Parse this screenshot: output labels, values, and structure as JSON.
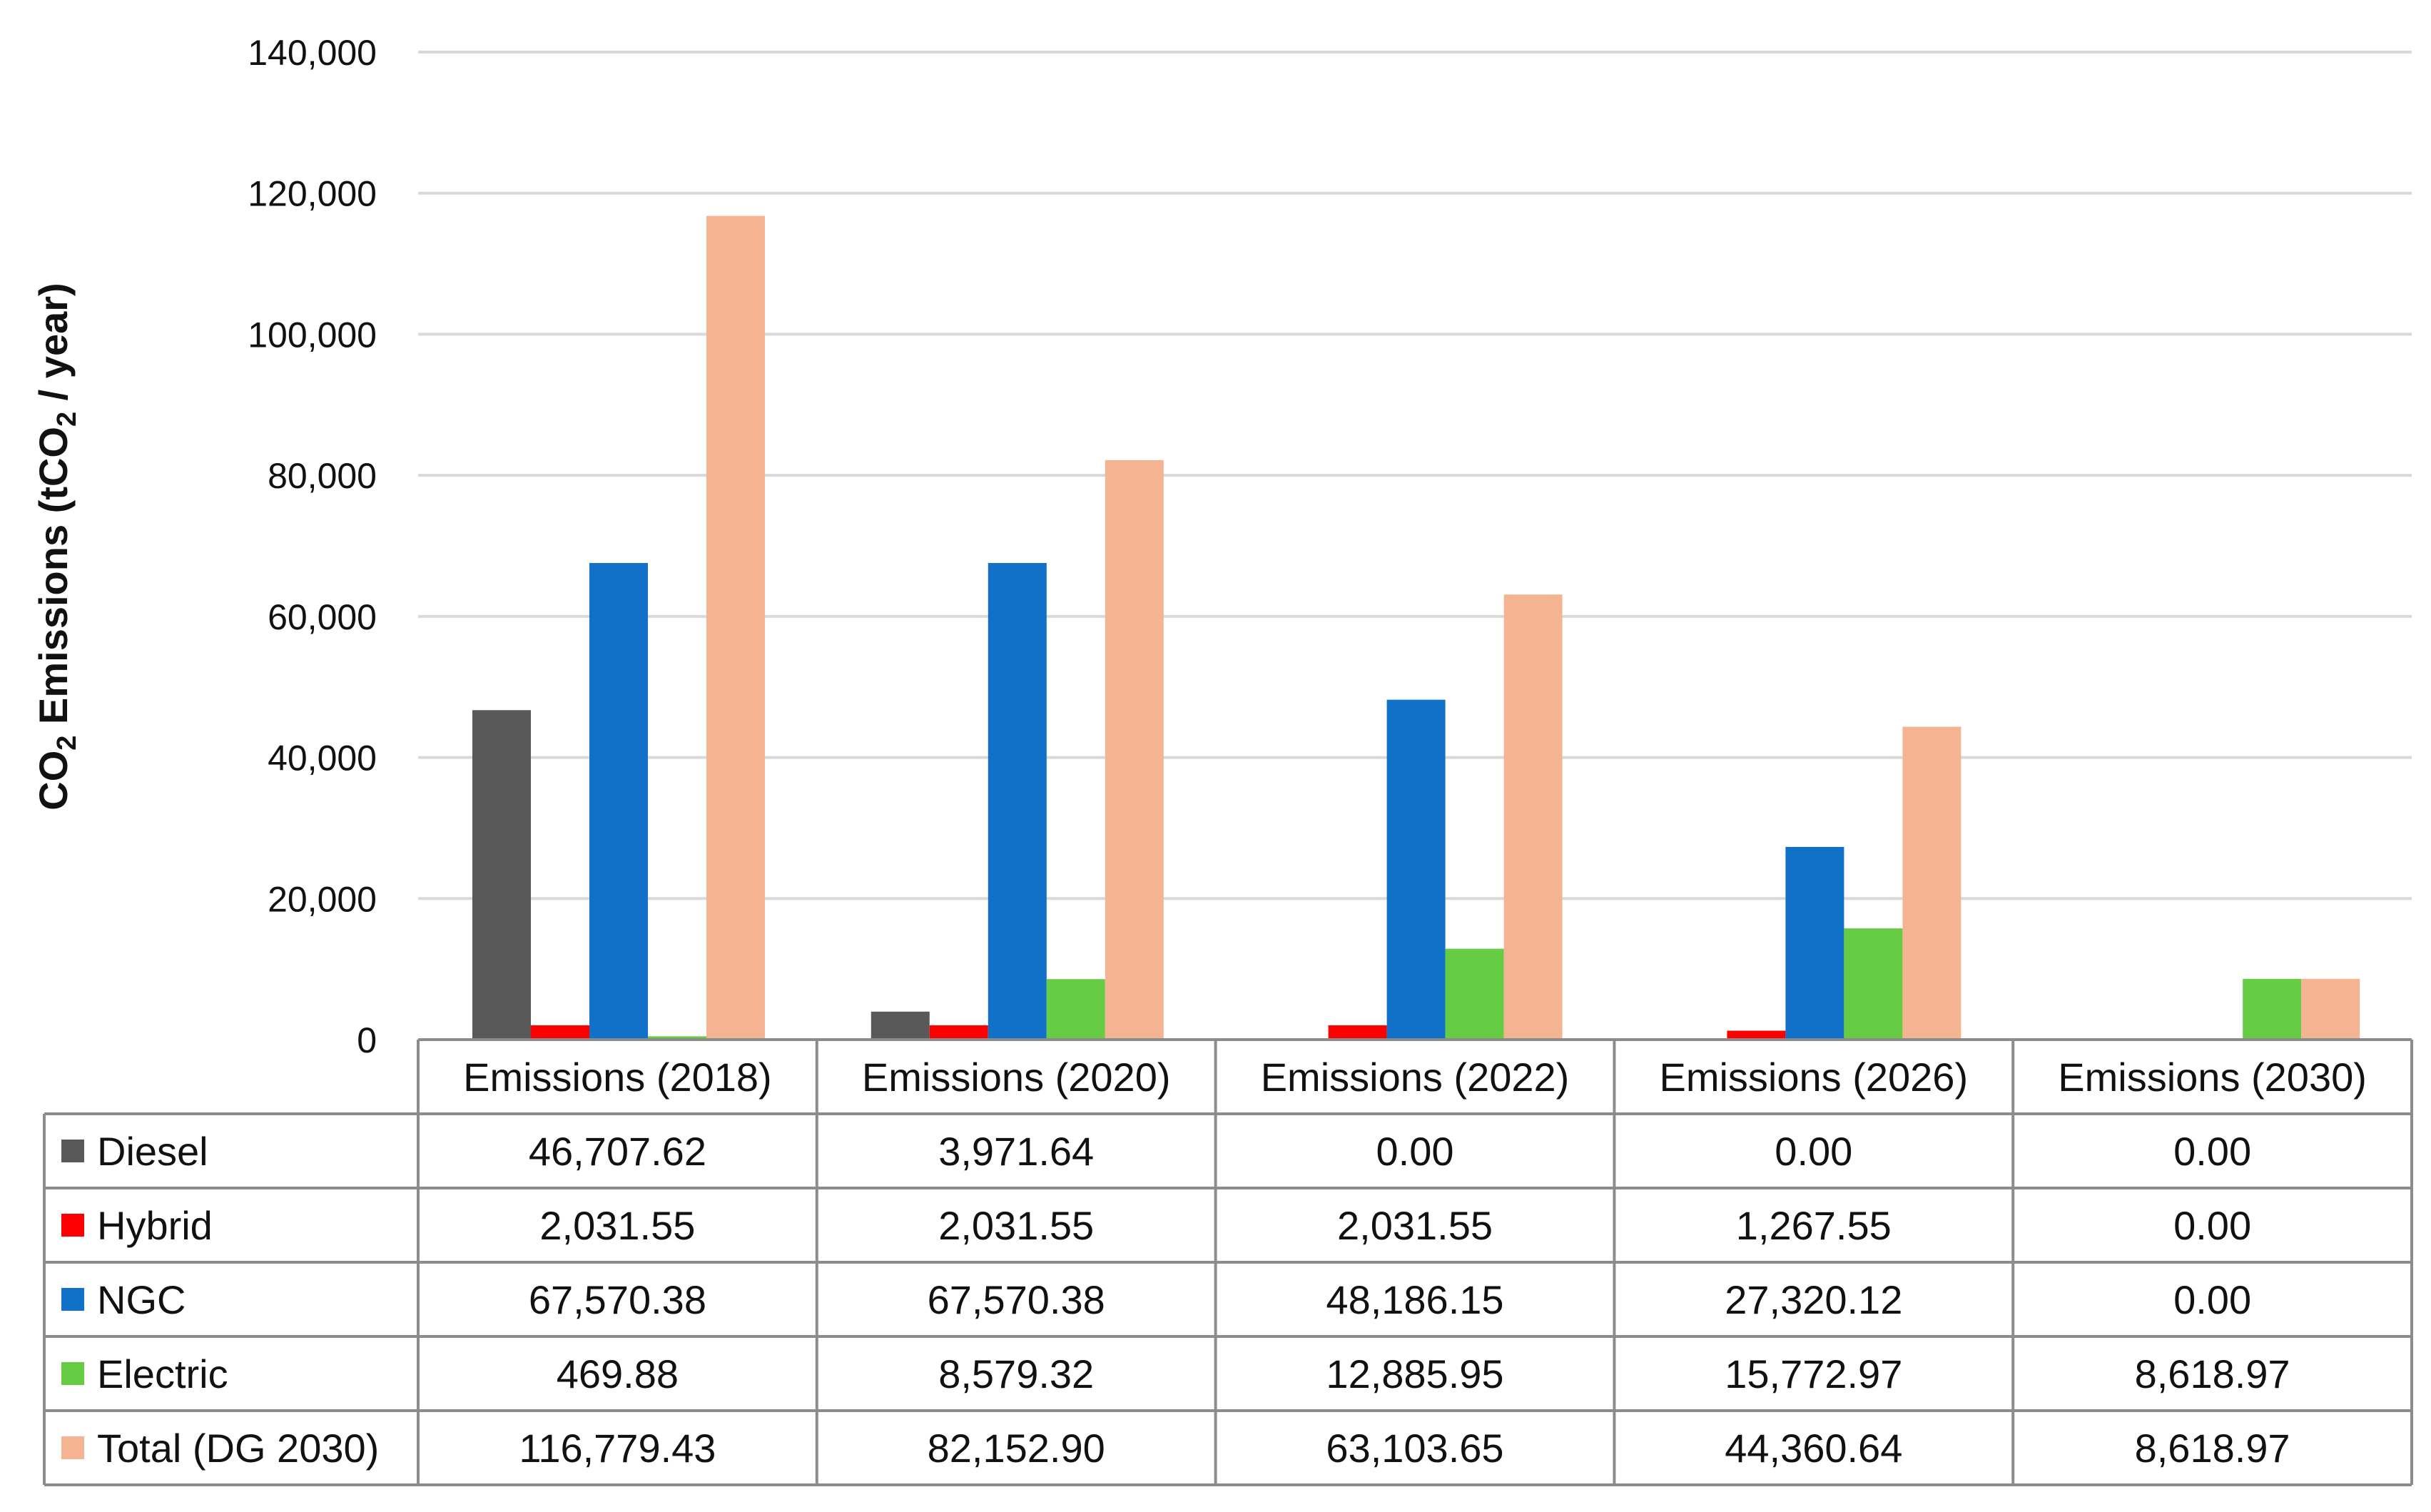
{
  "chart_data": {
    "type": "bar",
    "ylabel": {
      "prefix": "CO",
      "sub": "2",
      "middle": " Emissions (tCO",
      "sub2": "2",
      "suffix": " / year)"
    },
    "ylim": [
      0,
      140000
    ],
    "yticks": [
      {
        "value": 0,
        "label": "0"
      },
      {
        "value": 20000,
        "label": "20,000"
      },
      {
        "value": 40000,
        "label": "40,000"
      },
      {
        "value": 60000,
        "label": "60,000"
      },
      {
        "value": 80000,
        "label": "80,000"
      },
      {
        "value": 100000,
        "label": "100,000"
      },
      {
        "value": 120000,
        "label": "120,000"
      },
      {
        "value": 140000,
        "label": "140,000"
      }
    ],
    "grid": true,
    "legend": "data-table",
    "categories": [
      "Emissions (2018)",
      "Emissions (2020)",
      "Emissions (2022)",
      "Emissions (2026)",
      "Emissions (2030)"
    ],
    "series": [
      {
        "name": "Diesel",
        "color": "#595959",
        "values": [
          46707.62,
          3971.64,
          0,
          0,
          0
        ],
        "labels": [
          "46,707.62",
          "3,971.64",
          "0.00",
          "0.00",
          "0.00"
        ]
      },
      {
        "name": "Hybrid",
        "color": "#ff0000",
        "values": [
          2031.55,
          2031.55,
          2031.55,
          1267.55,
          0
        ],
        "labels": [
          "2,031.55",
          "2,031.55",
          "2,031.55",
          "1,267.55",
          "0.00"
        ]
      },
      {
        "name": "NGC",
        "color": "#1170c8",
        "values": [
          67570.38,
          67570.38,
          48186.15,
          27320.12,
          0
        ],
        "labels": [
          "67,570.38",
          "67,570.38",
          "48,186.15",
          "27,320.12",
          "0.00"
        ]
      },
      {
        "name": "Electric",
        "color": "#66cc44",
        "values": [
          469.88,
          8579.32,
          12885.95,
          15772.97,
          8618.97
        ],
        "labels": [
          "469.88",
          "8,579.32",
          "12,885.95",
          "15,772.97",
          "8,618.97"
        ]
      },
      {
        "name": "Total (DG 2030)",
        "color": "#f4b491",
        "values": [
          116779.43,
          82152.9,
          63103.65,
          44360.64,
          8618.97
        ],
        "labels": [
          "116,779.43",
          "82,152.90",
          "63,103.65",
          "44,360.64",
          "8,618.97"
        ]
      }
    ]
  }
}
